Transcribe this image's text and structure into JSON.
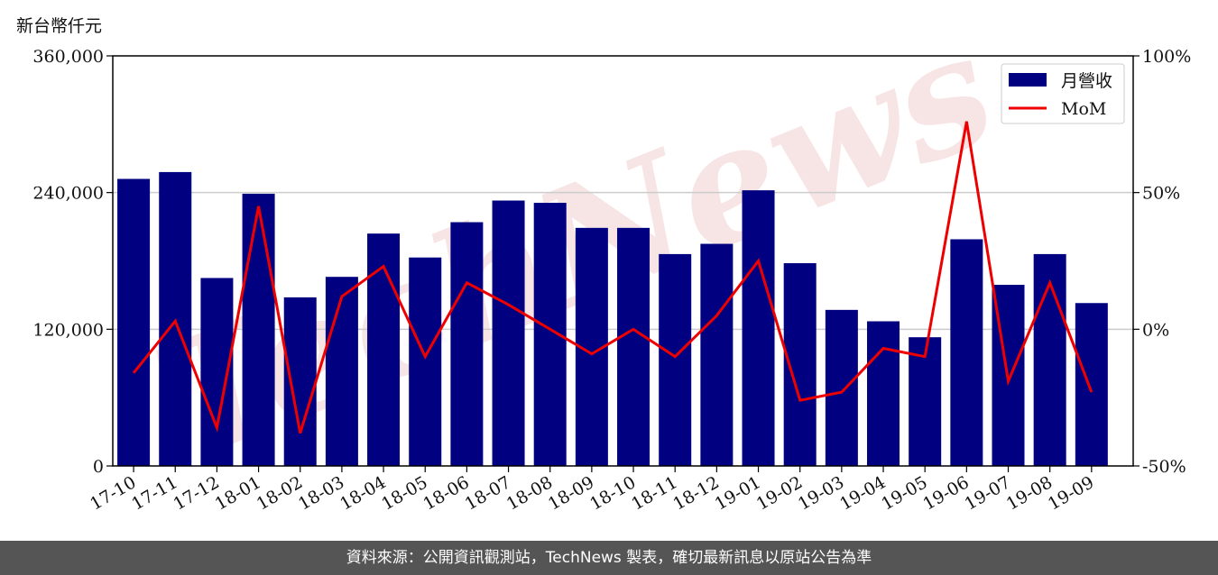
{
  "colors": {
    "bar": "#000080",
    "line": "#ee0000",
    "grid": "#cccccc",
    "footer_bg": "#555555",
    "watermark": "#f7e4e4"
  },
  "watermark_text": "TechNews",
  "footer": {
    "text": "資料來源：公開資訊觀測站，TechNews 製表，確切最新訊息以原站公告為準"
  },
  "chart_data": {
    "type": "bar",
    "left_axis_label": "新台幣仟元",
    "categories": [
      "17-10",
      "17-11",
      "17-12",
      "18-01",
      "18-02",
      "18-03",
      "18-04",
      "18-05",
      "18-06",
      "18-07",
      "18-08",
      "18-09",
      "18-10",
      "18-11",
      "18-12",
      "19-01",
      "19-02",
      "19-03",
      "19-04",
      "19-05",
      "19-06",
      "19-07",
      "19-08",
      "19-09"
    ],
    "series": [
      {
        "name": "月營收",
        "type": "bar",
        "axis": "left",
        "values": [
          252000,
          258000,
          165000,
          239000,
          148000,
          166000,
          204000,
          183000,
          214000,
          233000,
          231000,
          209000,
          209000,
          186000,
          195000,
          242000,
          178000,
          137000,
          127000,
          113000,
          199000,
          159000,
          186000,
          143000
        ]
      },
      {
        "name": "MoM",
        "type": "line",
        "axis": "right",
        "values": [
          -16,
          3,
          -36,
          45,
          -38,
          12,
          23,
          -10,
          17,
          9,
          0,
          -9,
          0,
          -10,
          5,
          25,
          -26,
          -23,
          -7,
          -10,
          76,
          -19,
          17,
          -23
        ]
      }
    ],
    "left_axis": {
      "min": 0,
      "max": 360000,
      "ticks": [
        0,
        120000,
        240000,
        360000
      ],
      "tick_labels": [
        "0",
        "120,000",
        "240,000",
        "360,000"
      ]
    },
    "right_axis": {
      "min": -50,
      "max": 100,
      "ticks": [
        -50,
        0,
        50,
        100
      ],
      "tick_labels": [
        "-50%",
        "0%",
        "50%",
        "100%"
      ]
    },
    "grid": true,
    "legend_position": "top-right"
  }
}
